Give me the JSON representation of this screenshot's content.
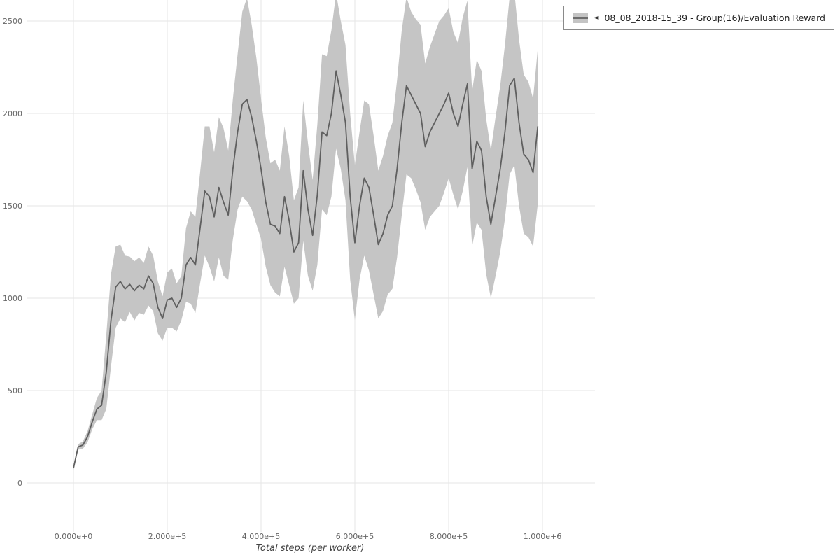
{
  "legend": {
    "arrow": "◄",
    "label": "08_08_2018-15_39 - Group(16)/Evaluation Reward"
  },
  "axes": {
    "x_label": "Total steps (per worker)",
    "x_ticks": [
      "0.000e+0",
      "2.000e+5",
      "4.000e+5",
      "6.000e+5",
      "8.000e+5",
      "1.000e+6"
    ],
    "y_ticks": [
      "0",
      "500",
      "1000",
      "1500",
      "2000",
      "2500"
    ]
  },
  "colors": {
    "line": "#5f5f5f",
    "band": "#c5c5c5",
    "grid": "#e6e6e6",
    "tick_text": "#666666"
  },
  "chart_data": {
    "type": "line",
    "title": "",
    "xlabel": "Total steps (per worker)",
    "ylabel": "",
    "xlim": [
      -100000,
      1100000
    ],
    "ylim": [
      -265,
      2615
    ],
    "grid": true,
    "legend_position": "top-right",
    "x_tick_values": [
      0,
      200000,
      400000,
      600000,
      800000,
      1000000
    ],
    "y_tick_values": [
      0,
      500,
      1000,
      1500,
      2000,
      2500
    ],
    "series": [
      {
        "name": "08_08_2018-15_39 - Group(16)/Evaluation Reward",
        "x": [
          0,
          10000,
          20000,
          30000,
          40000,
          50000,
          60000,
          70000,
          80000,
          90000,
          100000,
          110000,
          120000,
          130000,
          140000,
          150000,
          160000,
          170000,
          180000,
          190000,
          200000,
          210000,
          220000,
          230000,
          240000,
          250000,
          260000,
          270000,
          280000,
          290000,
          300000,
          310000,
          320000,
          330000,
          340000,
          350000,
          360000,
          370000,
          380000,
          390000,
          400000,
          410000,
          420000,
          430000,
          440000,
          450000,
          460000,
          470000,
          480000,
          490000,
          500000,
          510000,
          520000,
          530000,
          540000,
          550000,
          560000,
          570000,
          580000,
          590000,
          600000,
          610000,
          620000,
          630000,
          640000,
          650000,
          660000,
          670000,
          680000,
          690000,
          700000,
          710000,
          720000,
          730000,
          740000,
          750000,
          760000,
          770000,
          780000,
          790000,
          800000,
          810000,
          820000,
          830000,
          840000,
          850000,
          860000,
          870000,
          880000,
          890000,
          900000,
          910000,
          920000,
          930000,
          940000,
          950000,
          960000,
          970000,
          980000,
          990000
        ],
        "mean": [
          80,
          195,
          205,
          250,
          330,
          400,
          420,
          600,
          880,
          1060,
          1090,
          1050,
          1075,
          1040,
          1070,
          1050,
          1120,
          1080,
          950,
          890,
          990,
          1000,
          950,
          1000,
          1180,
          1220,
          1180,
          1380,
          1580,
          1550,
          1440,
          1600,
          1520,
          1450,
          1700,
          1900,
          2050,
          2075,
          1980,
          1850,
          1700,
          1520,
          1400,
          1390,
          1350,
          1550,
          1420,
          1250,
          1300,
          1690,
          1480,
          1340,
          1560,
          1900,
          1880,
          2000,
          2230,
          2100,
          1950,
          1550,
          1300,
          1500,
          1650,
          1600,
          1450,
          1290,
          1350,
          1450,
          1500,
          1700,
          1950,
          2150,
          2100,
          2050,
          2000,
          1820,
          1900,
          1950,
          2000,
          2050,
          2110,
          2000,
          1930,
          2050,
          2160,
          1700,
          1850,
          1800,
          1550,
          1400,
          1550,
          1700,
          1900,
          2150,
          2190,
          1950,
          1780,
          1750,
          1680,
          1930
        ],
        "band_halfwidth": [
          10,
          15,
          20,
          30,
          40,
          60,
          80,
          200,
          250,
          220,
          200,
          180,
          150,
          160,
          150,
          140,
          160,
          150,
          140,
          120,
          150,
          160,
          130,
          120,
          200,
          250,
          260,
          300,
          350,
          380,
          350,
          380,
          400,
          350,
          380,
          420,
          500,
          550,
          500,
          450,
          380,
          350,
          330,
          360,
          340,
          380,
          350,
          280,
          300,
          380,
          360,
          300,
          380,
          420,
          430,
          450,
          420,
          400,
          420,
          450,
          420,
          400,
          420,
          450,
          430,
          400,
          420,
          430,
          450,
          480,
          500,
          480,
          450,
          460,
          480,
          450,
          460,
          480,
          500,
          480,
          460,
          440,
          450,
          470,
          450,
          420,
          440,
          430,
          420,
          400,
          430,
          450,
          470,
          480,
          470,
          450,
          430,
          420,
          400,
          420
        ]
      }
    ]
  }
}
